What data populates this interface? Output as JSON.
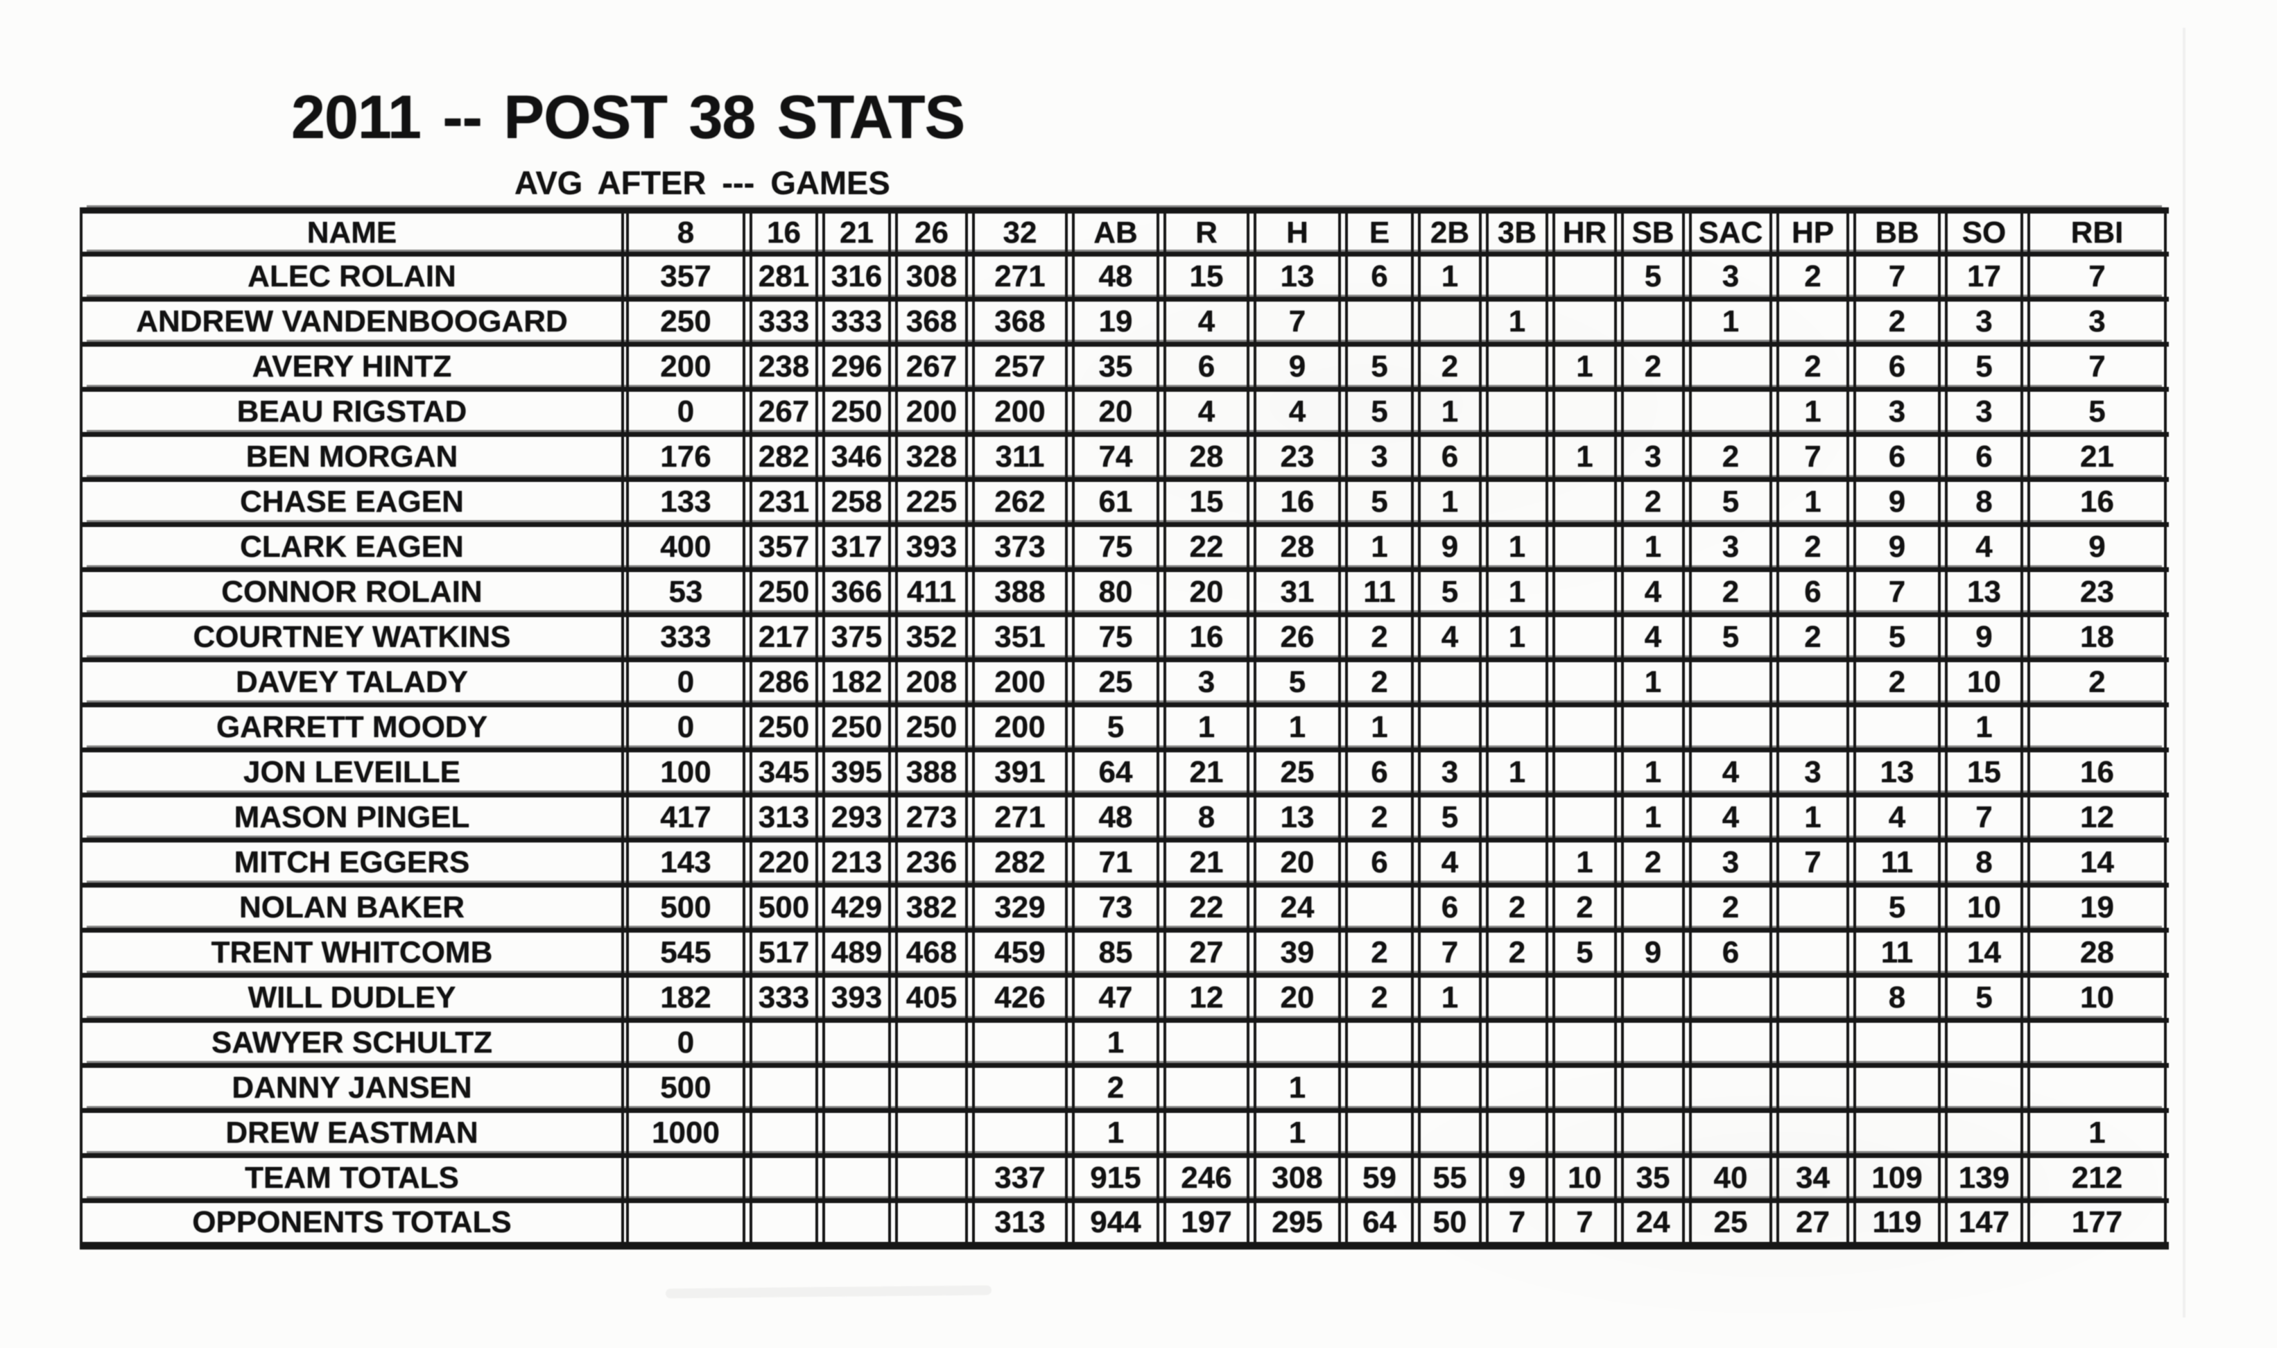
{
  "title": "2011 -- POST 38 STATS",
  "subtitle": "AVG  AFTER --- GAMES",
  "colors": {
    "ink": "#161616",
    "grid_line": "#1b1b1b",
    "paper": "#fcfcfb"
  },
  "table": {
    "columns": [
      "NAME",
      "8",
      "16",
      "21",
      "26",
      "32",
      "AB",
      "R",
      "H",
      "E",
      "2B",
      "3B",
      "HR",
      "SB",
      "SAC",
      "HP",
      "BB",
      "SO",
      "RBI"
    ],
    "rows": [
      [
        "ALEC ROLAIN",
        "357",
        "281",
        "316",
        "308",
        "271",
        "48",
        "15",
        "13",
        "6",
        "1",
        "",
        "",
        "5",
        "3",
        "2",
        "7",
        "17",
        "7"
      ],
      [
        "ANDREW VANDENBOOGARD",
        "250",
        "333",
        "333",
        "368",
        "368",
        "19",
        "4",
        "7",
        "",
        "",
        "1",
        "",
        "",
        "1",
        "",
        "2",
        "3",
        "3"
      ],
      [
        "AVERY HINTZ",
        "200",
        "238",
        "296",
        "267",
        "257",
        "35",
        "6",
        "9",
        "5",
        "2",
        "",
        "1",
        "2",
        "",
        "2",
        "6",
        "5",
        "7"
      ],
      [
        "BEAU RIGSTAD",
        "0",
        "267",
        "250",
        "200",
        "200",
        "20",
        "4",
        "4",
        "5",
        "1",
        "",
        "",
        "",
        "",
        "1",
        "3",
        "3",
        "5"
      ],
      [
        "BEN MORGAN",
        "176",
        "282",
        "346",
        "328",
        "311",
        "74",
        "28",
        "23",
        "3",
        "6",
        "",
        "1",
        "3",
        "2",
        "7",
        "6",
        "6",
        "21"
      ],
      [
        "CHASE EAGEN",
        "133",
        "231",
        "258",
        "225",
        "262",
        "61",
        "15",
        "16",
        "5",
        "1",
        "",
        "",
        "2",
        "5",
        "1",
        "9",
        "8",
        "16"
      ],
      [
        "CLARK EAGEN",
        "400",
        "357",
        "317",
        "393",
        "373",
        "75",
        "22",
        "28",
        "1",
        "9",
        "1",
        "",
        "1",
        "3",
        "2",
        "9",
        "4",
        "9"
      ],
      [
        "CONNOR ROLAIN",
        "53",
        "250",
        "366",
        "411",
        "388",
        "80",
        "20",
        "31",
        "11",
        "5",
        "1",
        "",
        "4",
        "2",
        "6",
        "7",
        "13",
        "23"
      ],
      [
        "COURTNEY WATKINS",
        "333",
        "217",
        "375",
        "352",
        "351",
        "75",
        "16",
        "26",
        "2",
        "4",
        "1",
        "",
        "4",
        "5",
        "2",
        "5",
        "9",
        "18"
      ],
      [
        "DAVEY TALADY",
        "0",
        "286",
        "182",
        "208",
        "200",
        "25",
        "3",
        "5",
        "2",
        "",
        "",
        "",
        "1",
        "",
        "",
        "2",
        "10",
        "2"
      ],
      [
        "GARRETT MOODY",
        "0",
        "250",
        "250",
        "250",
        "200",
        "5",
        "1",
        "1",
        "1",
        "",
        "",
        "",
        "",
        "",
        "",
        "",
        "1",
        ""
      ],
      [
        "JON LEVEILLE",
        "100",
        "345",
        "395",
        "388",
        "391",
        "64",
        "21",
        "25",
        "6",
        "3",
        "1",
        "",
        "1",
        "4",
        "3",
        "13",
        "15",
        "16"
      ],
      [
        "MASON PINGEL",
        "417",
        "313",
        "293",
        "273",
        "271",
        "48",
        "8",
        "13",
        "2",
        "5",
        "",
        "",
        "1",
        "4",
        "1",
        "4",
        "7",
        "12"
      ],
      [
        "MITCH EGGERS",
        "143",
        "220",
        "213",
        "236",
        "282",
        "71",
        "21",
        "20",
        "6",
        "4",
        "",
        "1",
        "2",
        "3",
        "7",
        "11",
        "8",
        "14"
      ],
      [
        "NOLAN BAKER",
        "500",
        "500",
        "429",
        "382",
        "329",
        "73",
        "22",
        "24",
        "",
        "6",
        "2",
        "2",
        "",
        "2",
        "",
        "5",
        "10",
        "19"
      ],
      [
        "TRENT WHITCOMB",
        "545",
        "517",
        "489",
        "468",
        "459",
        "85",
        "27",
        "39",
        "2",
        "7",
        "2",
        "5",
        "9",
        "6",
        "",
        "11",
        "14",
        "28"
      ],
      [
        "WILL DUDLEY",
        "182",
        "333",
        "393",
        "405",
        "426",
        "47",
        "12",
        "20",
        "2",
        "1",
        "",
        "",
        "",
        "",
        "",
        "8",
        "5",
        "10"
      ],
      [
        "SAWYER SCHULTZ",
        "0",
        "",
        "",
        "",
        "",
        "1",
        "",
        "",
        "",
        "",
        "",
        "",
        "",
        "",
        "",
        "",
        "",
        ""
      ],
      [
        "DANNY JANSEN",
        "500",
        "",
        "",
        "",
        "",
        "2",
        "",
        "1",
        "",
        "",
        "",
        "",
        "",
        "",
        "",
        "",
        "",
        ""
      ],
      [
        "DREW EASTMAN",
        "1000",
        "",
        "",
        "",
        "",
        "1",
        "",
        "1",
        "",
        "",
        "",
        "",
        "",
        "",
        "",
        "",
        "",
        "1"
      ],
      [
        "TEAM TOTALS",
        "",
        "",
        "",
        "",
        "337",
        "915",
        "246",
        "308",
        "59",
        "55",
        "9",
        "10",
        "35",
        "40",
        "34",
        "109",
        "139",
        "212"
      ],
      [
        "OPPONENTS TOTALS",
        "",
        "",
        "",
        "",
        "313",
        "944",
        "197",
        "295",
        "64",
        "50",
        "7",
        "7",
        "24",
        "25",
        "27",
        "119",
        "147",
        "177"
      ]
    ]
  }
}
